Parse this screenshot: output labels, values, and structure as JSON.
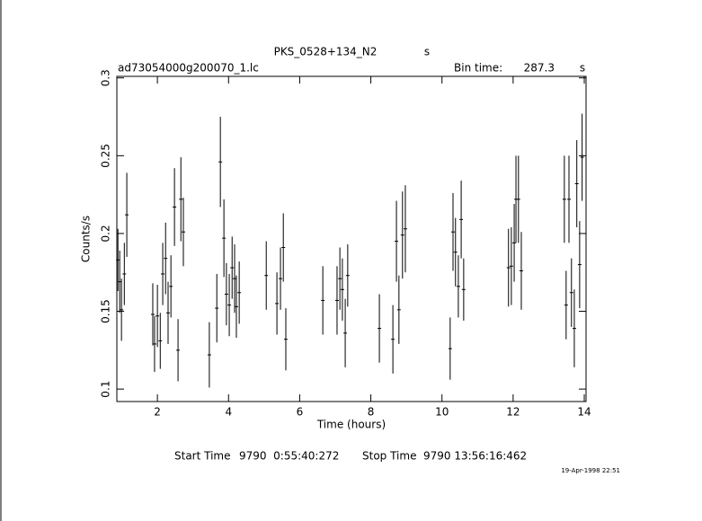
{
  "chart_data": {
    "type": "errorbar",
    "title": "PKS_0528+134_N2",
    "title_unit": "s",
    "file_name": "ad73054000g200070_1.lc",
    "bin_time_label": "Bin time:",
    "bin_time": "287.3",
    "bin_time_unit": "s",
    "x_label": "Time (hours)",
    "y_label": "Counts/s",
    "start_label": "Start Time",
    "start_value": "9790  0:55:40:272",
    "stop_label": "Stop Time",
    "stop_value": "9790 13:56:16:462",
    "timestamp": "19-Apr-1998 22:51",
    "color": "#000000",
    "xlim": [
      0.86,
      14.05
    ],
    "ylim": [
      0.092,
      0.301
    ],
    "xticks": [
      2,
      4,
      6,
      8,
      10,
      12,
      14
    ],
    "yticks": [
      0.1,
      0.15,
      0.2,
      0.25,
      0.3
    ],
    "x": [
      0.89,
      0.94,
      0.99,
      1.07,
      1.14,
      1.87,
      1.92,
      2.0,
      2.08,
      2.15,
      2.23,
      2.3,
      2.38,
      2.48,
      2.58,
      2.66,
      2.73,
      3.46,
      3.67,
      3.77,
      3.87,
      3.94,
      4.02,
      4.1,
      4.17,
      4.22,
      4.3,
      5.06,
      5.36,
      5.46,
      5.54,
      5.61,
      6.65,
      7.05,
      7.13,
      7.2,
      7.28,
      7.35,
      8.24,
      8.62,
      8.72,
      8.79,
      8.89,
      8.97,
      10.23,
      10.31,
      10.38,
      10.46,
      10.54,
      10.61,
      11.87,
      11.95,
      12.03,
      12.08,
      12.15,
      12.23,
      13.44,
      13.49,
      13.57,
      13.64,
      13.72,
      13.79,
      13.87,
      13.94
    ],
    "values": [
      0.183,
      0.169,
      0.151,
      0.174,
      0.212,
      0.148,
      0.129,
      0.147,
      0.131,
      0.174,
      0.184,
      0.149,
      0.166,
      0.217,
      0.125,
      0.222,
      0.201,
      0.122,
      0.152,
      0.246,
      0.197,
      0.161,
      0.154,
      0.178,
      0.171,
      0.153,
      0.162,
      0.173,
      0.155,
      0.171,
      0.191,
      0.132,
      0.157,
      0.157,
      0.171,
      0.164,
      0.136,
      0.173,
      0.139,
      0.132,
      0.195,
      0.151,
      0.199,
      0.203,
      0.126,
      0.201,
      0.188,
      0.166,
      0.209,
      0.164,
      0.178,
      0.179,
      0.194,
      0.222,
      0.222,
      0.176,
      0.222,
      0.154,
      0.222,
      0.162,
      0.139,
      0.232,
      0.18,
      0.249
    ],
    "errors": [
      0.02,
      0.02,
      0.02,
      0.02,
      0.027,
      0.02,
      0.018,
      0.02,
      0.018,
      0.02,
      0.023,
      0.02,
      0.02,
      0.025,
      0.02,
      0.027,
      0.022,
      0.021,
      0.022,
      0.029,
      0.025,
      0.02,
      0.02,
      0.02,
      0.022,
      0.02,
      0.02,
      0.022,
      0.02,
      0.02,
      0.022,
      0.02,
      0.022,
      0.022,
      0.02,
      0.02,
      0.022,
      0.02,
      0.022,
      0.022,
      0.026,
      0.022,
      0.028,
      0.028,
      0.02,
      0.025,
      0.022,
      0.02,
      0.025,
      0.02,
      0.025,
      0.025,
      0.025,
      0.028,
      0.028,
      0.025,
      0.028,
      0.022,
      0.028,
      0.022,
      0.025,
      0.028,
      0.028,
      0.028
    ]
  }
}
